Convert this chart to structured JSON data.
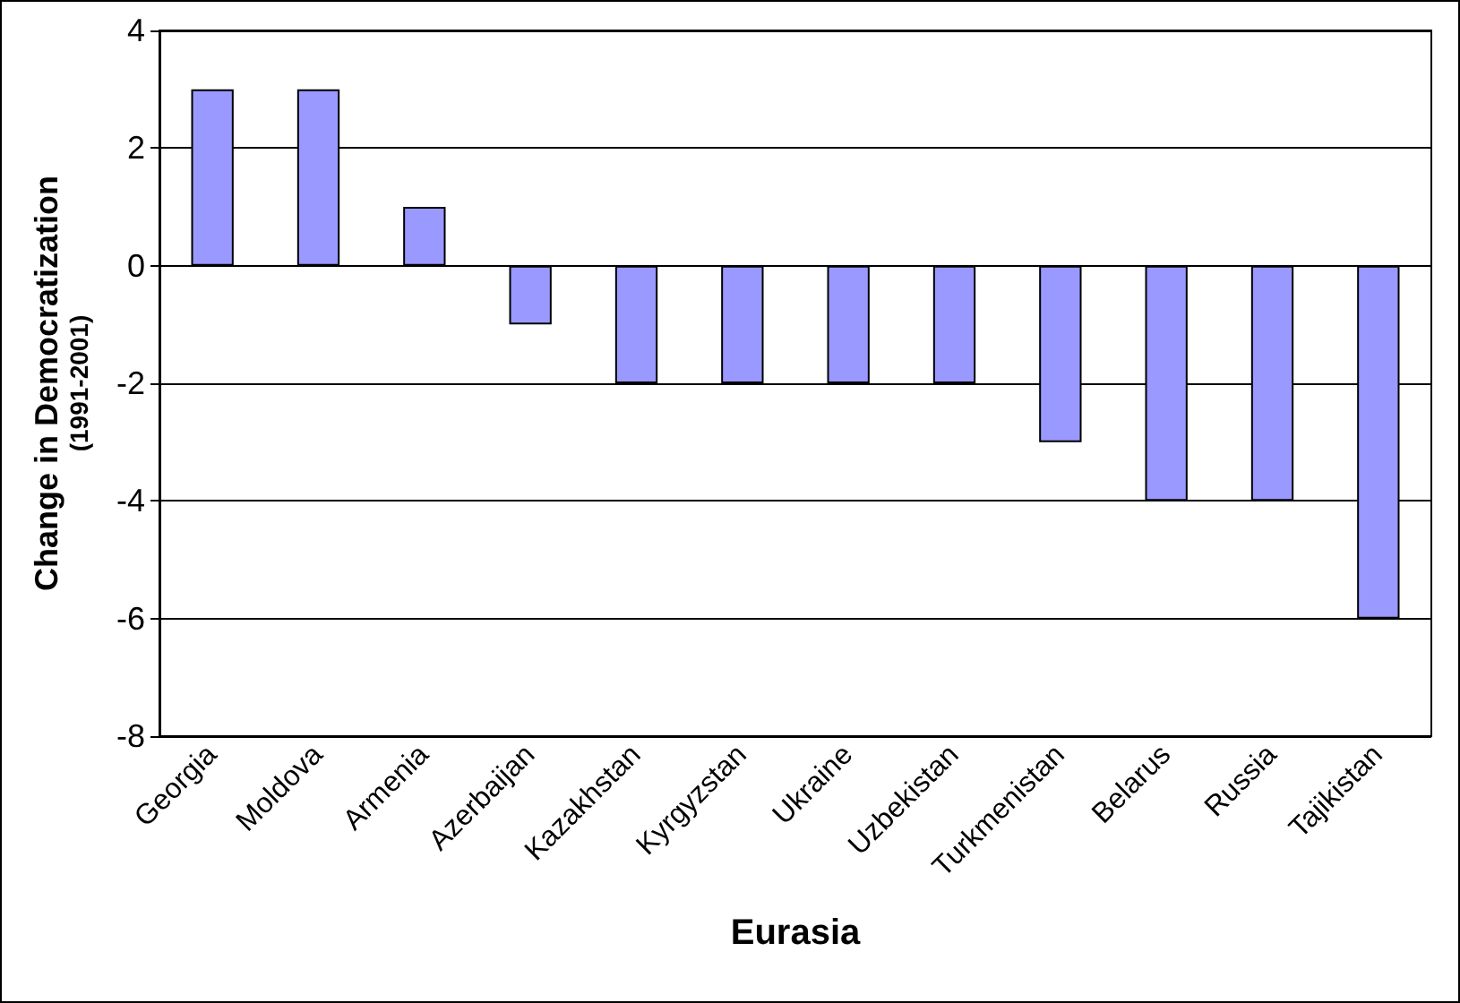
{
  "chart_data": {
    "type": "bar",
    "xlabel": "Eurasia",
    "ylabel": "Change in Democratization\n(1991-2001)",
    "categories": [
      "Georgia",
      "Moldova",
      "Armenia",
      "Azerbaijan",
      "Kazakhstan",
      "Kyrgyzstan",
      "Ukraine",
      "Uzbekistan",
      "Turkmenistan",
      "Belarus",
      "Russia",
      "Tajikistan"
    ],
    "values": [
      3,
      3,
      1,
      -1,
      -2,
      -2,
      -2,
      -2,
      -3,
      -4,
      -4,
      -6
    ],
    "color": "#9999ff",
    "ylim": [
      -8,
      4
    ],
    "yticks": [
      -8,
      -6,
      -4,
      -2,
      0,
      2,
      4
    ],
    "grid": "y"
  }
}
